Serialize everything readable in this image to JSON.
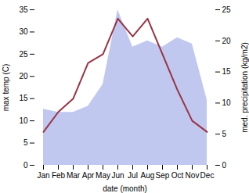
{
  "chart_data": {
    "type": "line",
    "categories": [
      "Jan",
      "Feb",
      "Mar",
      "Apr",
      "May",
      "Jun",
      "Jul",
      "Aug",
      "Sep",
      "Oct",
      "Nov",
      "Dec"
    ],
    "series": [
      {
        "type": "area",
        "axis": "y2",
        "color": "#c0c8f0",
        "values": [
          9.0,
          8.5,
          8.5,
          9.5,
          13.0,
          25.0,
          19.0,
          20.0,
          19.0,
          20.5,
          19.5,
          10.5
        ]
      },
      {
        "type": "line",
        "color": "#993344",
        "values": [
          7.5,
          12.0,
          15.0,
          23.0,
          25.0,
          33.0,
          29.0,
          33.0,
          25.0,
          17.0,
          10.0,
          7.5
        ]
      }
    ],
    "xlabel": "date (month)",
    "ylabel": "max temp (C)",
    "y2label": "med. precipitation (kg/m2)",
    "ylim": [
      0,
      35
    ],
    "yticks": [
      0,
      5,
      10,
      15,
      20,
      25,
      30,
      35
    ],
    "y2lim": [
      0,
      25
    ],
    "y2ticks": [
      0,
      5,
      10,
      15,
      20,
      25
    ],
    "grid": false
  }
}
